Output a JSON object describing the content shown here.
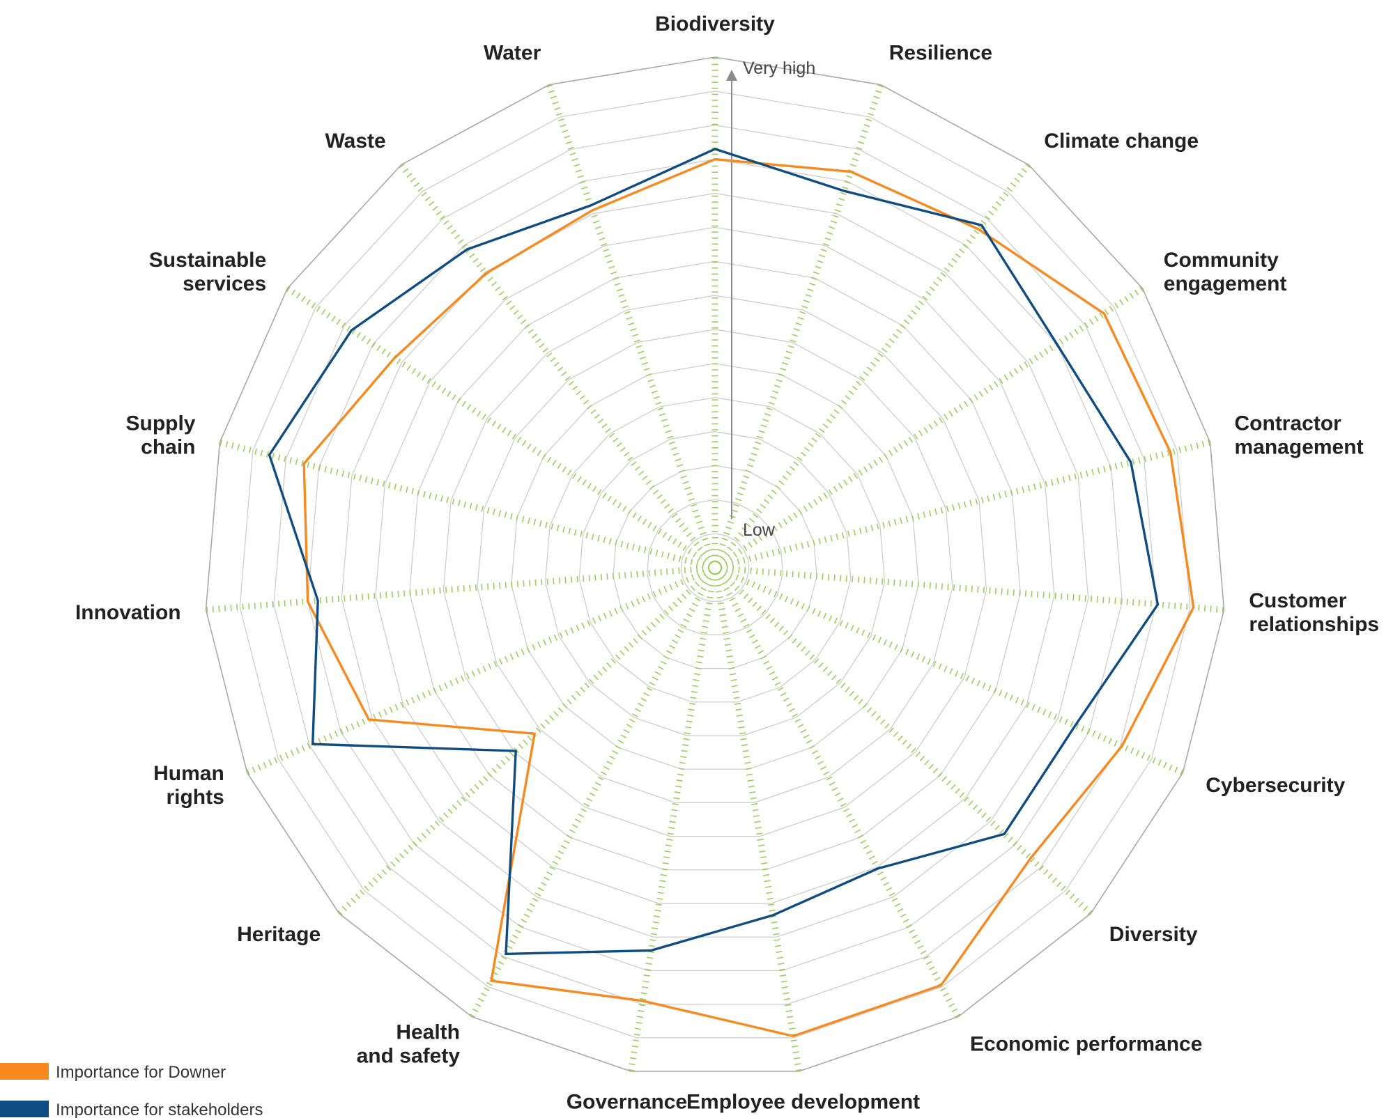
{
  "chart_data": {
    "type": "radar",
    "title": "",
    "scale_labels": {
      "high": "Very high",
      "low": "Low"
    },
    "rings": 15,
    "categories": [
      [
        "Biodiversity"
      ],
      [
        "Resilience"
      ],
      [
        "Climate change"
      ],
      [
        "Community",
        "engagement"
      ],
      [
        "Contractor",
        "management"
      ],
      [
        "Customer",
        "relationships"
      ],
      [
        "Cybersecurity"
      ],
      [
        "Diversity"
      ],
      [
        "Economic performance"
      ],
      [
        "Employee development"
      ],
      [
        "Governance"
      ],
      [
        "Health",
        "and safety"
      ],
      [
        "Heritage"
      ],
      [
        "Human",
        "rights"
      ],
      [
        "Innovation"
      ],
      [
        "Supply",
        "chain"
      ],
      [
        "Sustainable",
        "services"
      ],
      [
        "Waste"
      ],
      [
        "Water"
      ]
    ],
    "series": [
      {
        "name": "Importance for Downer",
        "color": "#F7891F",
        "values": [
          0.8,
          0.82,
          0.84,
          0.91,
          0.92,
          0.94,
          0.87,
          0.84,
          0.93,
          0.93,
          0.86,
          0.92,
          0.48,
          0.74,
          0.8,
          0.83,
          0.75,
          0.73,
          0.74
        ]
      },
      {
        "name": "Importance for stakeholders",
        "color": "#0F4C81",
        "values": [
          0.82,
          0.78,
          0.85,
          0.8,
          0.84,
          0.87,
          0.77,
          0.77,
          0.67,
          0.69,
          0.76,
          0.86,
          0.53,
          0.86,
          0.78,
          0.9,
          0.85,
          0.79,
          0.75
        ]
      }
    ]
  }
}
